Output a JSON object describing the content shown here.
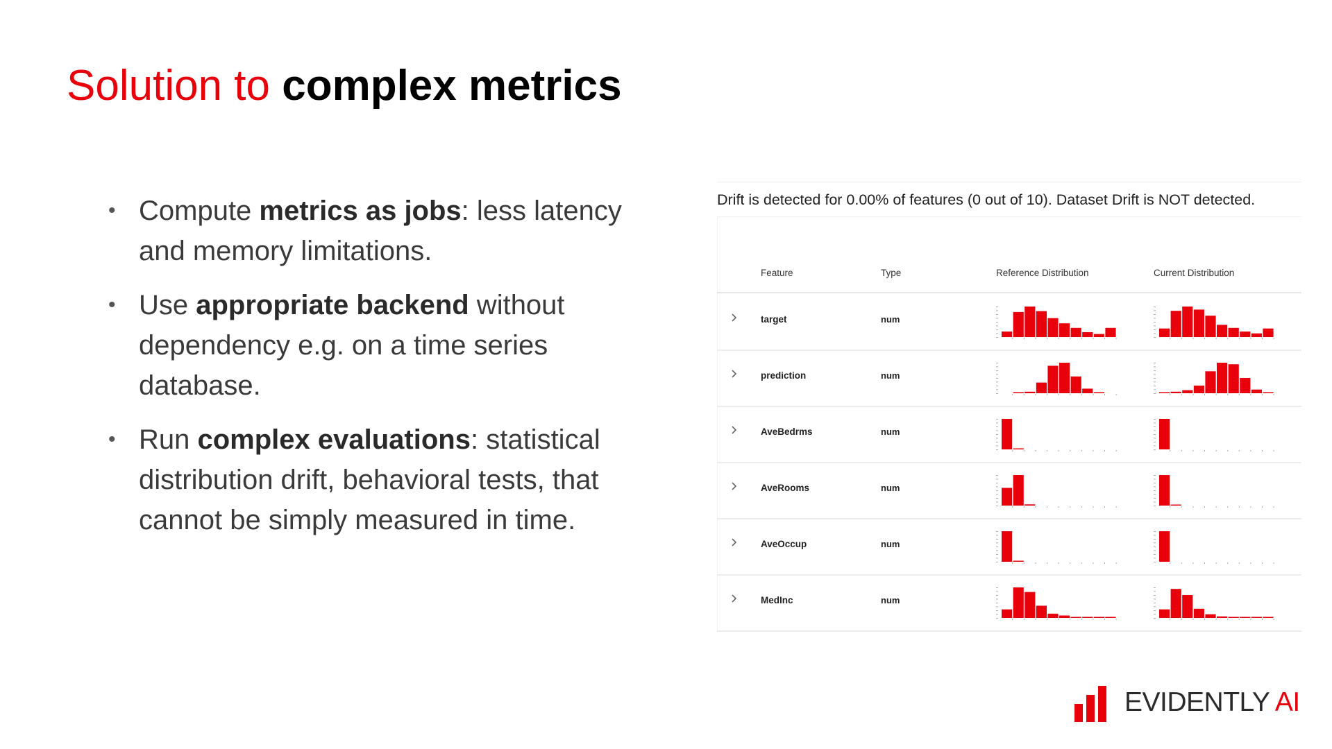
{
  "title": {
    "part1": "Solution to ",
    "part2": "complex metrics"
  },
  "bullets": [
    {
      "pre": "Compute ",
      "bold": "metrics as jobs",
      "post": ": less latency and memory limitations."
    },
    {
      "pre": "Use ",
      "bold": "appropriate backend",
      "post": " without dependency e.g. on a time series database."
    },
    {
      "pre": "Run ",
      "bold": "complex evaluations",
      "post": ":  statistical distribution drift, behavioral tests, that cannot be simply measured in time."
    }
  ],
  "drift_table": {
    "message": "Drift is detected for 0.00% of features (0 out of 10). Dataset Drift is NOT detected.",
    "headers": {
      "feature": "Feature",
      "type": "Type",
      "reference": "Reference Distribution",
      "current": "Current Distribution"
    },
    "rows": [
      {
        "feature": "target",
        "type": "num",
        "reference": [
          0.18,
          0.82,
          1.0,
          0.85,
          0.62,
          0.45,
          0.3,
          0.16,
          0.1,
          0.3
        ],
        "current": [
          0.28,
          0.86,
          1.0,
          0.9,
          0.7,
          0.4,
          0.3,
          0.18,
          0.12,
          0.28
        ]
      },
      {
        "feature": "prediction",
        "type": "num",
        "reference": [
          0.0,
          0.02,
          0.05,
          0.35,
          0.9,
          1.0,
          0.55,
          0.15,
          0.03,
          0.0
        ],
        "current": [
          0.02,
          0.05,
          0.1,
          0.25,
          0.72,
          1.0,
          0.95,
          0.5,
          0.12,
          0.03
        ]
      },
      {
        "feature": "AveBedrms",
        "type": "num",
        "reference": [
          1.0,
          0.03,
          0,
          0,
          0,
          0,
          0,
          0,
          0,
          0
        ],
        "current": [
          1.0,
          0,
          0,
          0,
          0,
          0,
          0,
          0,
          0,
          0
        ]
      },
      {
        "feature": "AveRooms",
        "type": "num",
        "reference": [
          0.58,
          1.0,
          0.04,
          0,
          0,
          0,
          0,
          0,
          0,
          0
        ],
        "current": [
          1.0,
          0.02,
          0,
          0,
          0,
          0,
          0,
          0,
          0,
          0
        ]
      },
      {
        "feature": "AveOccup",
        "type": "num",
        "reference": [
          1.0,
          0.02,
          0,
          0,
          0,
          0,
          0,
          0,
          0,
          0
        ],
        "current": [
          1.0,
          0,
          0,
          0,
          0,
          0,
          0,
          0,
          0,
          0
        ]
      },
      {
        "feature": "MedInc",
        "type": "num",
        "reference": [
          0.28,
          1.0,
          0.85,
          0.4,
          0.14,
          0.08,
          0.03,
          0.02,
          0.01,
          0.01
        ],
        "current": [
          0.28,
          0.95,
          0.75,
          0.3,
          0.12,
          0.05,
          0.02,
          0.01,
          0.02,
          0.01
        ]
      }
    ]
  },
  "logo": {
    "word_dark": "EVIDENTLY ",
    "word_red": "AI"
  },
  "colors": {
    "accent": "#e8000b",
    "text": "#3a3a3a"
  },
  "icons": {
    "row_expand": "chevron-right-icon",
    "logo_mark": "bar-chart-icon"
  }
}
